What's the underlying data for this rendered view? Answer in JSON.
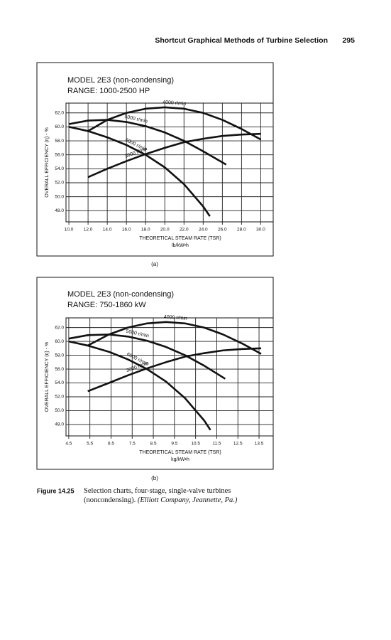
{
  "header": {
    "title": "Shortcut Graphical Methods of Turbine Selection",
    "page": "295"
  },
  "panels": [
    "(a)",
    "(b)"
  ],
  "caption": {
    "label": "Figure 14.25",
    "text": "Selection charts, four-stage, single-valve turbines (noncondensing).",
    "source": "(Elliott Company, Jeannette, Pa.)"
  },
  "chart_data": [
    {
      "type": "line",
      "title": "MODEL 2E3 (non-condensing)",
      "subtitle": "RANGE: 1000-2500 HP",
      "ylabel": "OVERALL EFFICIENCY (η) - %",
      "xlabel": "THEORETICAL STEAM RATE (TSR)",
      "xunit": "lb/kW•h",
      "xlim": [
        9.7,
        31.3
      ],
      "ylim": [
        46.4,
        63.4
      ],
      "grid": true,
      "xticks": [
        {
          "value": 10,
          "label": "10.0"
        },
        {
          "value": 12,
          "label": "12.0"
        },
        {
          "value": 14,
          "label": "14.0"
        },
        {
          "value": 16,
          "label": "16.0"
        },
        {
          "value": 18,
          "label": "18.0"
        },
        {
          "value": 20,
          "label": "20.0"
        },
        {
          "value": 22,
          "label": "22.0"
        },
        {
          "value": 24,
          "label": "24.0"
        },
        {
          "value": 26,
          "label": "26.0"
        },
        {
          "value": 28,
          "label": "28.0"
        },
        {
          "value": 30,
          "label": "30.0"
        }
      ],
      "yticks": [
        {
          "value": 48,
          "label": "48.0"
        },
        {
          "value": 50,
          "label": "50.0"
        },
        {
          "value": 52,
          "label": "52.0"
        },
        {
          "value": 54,
          "label": "54.0"
        },
        {
          "value": 56,
          "label": "56.0"
        },
        {
          "value": 58,
          "label": "58.0"
        },
        {
          "value": 60,
          "label": "60.0"
        },
        {
          "value": 62,
          "label": "62.0"
        }
      ],
      "series": [
        {
          "name": "4000 r/min",
          "color": "#111111",
          "x": [
            12,
            14,
            16,
            18,
            20,
            22,
            24,
            26,
            28,
            30
          ],
          "values": [
            59.4,
            61.0,
            62.0,
            62.6,
            62.8,
            62.6,
            62.0,
            61.0,
            59.7,
            58.2
          ]
        },
        {
          "name": "5000 r/min",
          "color": "#111111",
          "x": [
            10,
            12,
            14,
            16,
            18,
            20,
            22,
            24,
            26.4
          ],
          "values": [
            60.4,
            60.9,
            61.0,
            60.7,
            60.1,
            59.2,
            58.0,
            56.5,
            54.6
          ]
        },
        {
          "name": "6000 r/min",
          "color": "#111111",
          "x": [
            10,
            12,
            14,
            16,
            18,
            20,
            22,
            24,
            24.7
          ],
          "values": [
            60.0,
            59.4,
            58.5,
            57.4,
            56.0,
            54.2,
            51.8,
            48.6,
            47.2
          ]
        },
        {
          "name": "3000 r/min",
          "color": "#111111",
          "x": [
            12,
            14,
            16,
            18,
            20,
            22,
            24,
            26,
            28,
            30
          ],
          "values": [
            52.8,
            54.0,
            55.1,
            56.1,
            57.0,
            57.8,
            58.3,
            58.7,
            58.9,
            59.0
          ]
        }
      ]
    },
    {
      "type": "line",
      "title": "MODEL 2E3 (non-condensing)",
      "subtitle": "RANGE: 750-1860 kW",
      "ylabel": "OVERALL EFFICIENCY (η) - %",
      "xlabel": "THEORETICAL STEAM RATE (TSR)",
      "xunit": "kg/kW•h",
      "xlim": [
        4.37,
        14.17
      ],
      "ylim": [
        46.35,
        63.4
      ],
      "grid": true,
      "xticks": [
        4.5,
        5.5,
        6.5,
        7.5,
        8.5,
        9.5,
        10.5,
        11.5,
        12.5,
        13.5
      ],
      "yticks": [
        {
          "value": 48,
          "label": "48.0"
        },
        {
          "value": 50,
          "label": "50.0"
        },
        {
          "value": 52,
          "label": "52.0"
        },
        {
          "value": 54,
          "label": "54.0"
        },
        {
          "value": 56,
          "label": "56.0"
        },
        {
          "value": 58,
          "label": "58.0"
        },
        {
          "value": 60,
          "label": "60.0"
        },
        {
          "value": 62,
          "label": "62.0"
        }
      ],
      "series": [
        {
          "name": "4000 r/min",
          "color": "#111111",
          "x": [
            5.4,
            6.4,
            7.3,
            8.2,
            9.1,
            10.0,
            10.9,
            11.8,
            12.7,
            13.6
          ],
          "values": [
            59.4,
            61.0,
            62.0,
            62.6,
            62.8,
            62.6,
            62.0,
            61.0,
            59.7,
            58.2
          ]
        },
        {
          "name": "5000 r/min",
          "color": "#111111",
          "x": [
            4.5,
            5.4,
            6.4,
            7.3,
            8.2,
            9.1,
            10.0,
            10.9,
            11.9
          ],
          "values": [
            60.4,
            60.9,
            61.0,
            60.7,
            60.1,
            59.2,
            58.0,
            56.5,
            54.6
          ]
        },
        {
          "name": "6000 r/min",
          "color": "#111111",
          "x": [
            4.5,
            5.4,
            6.4,
            7.3,
            8.2,
            9.1,
            10.0,
            10.9,
            11.2
          ],
          "values": [
            60.0,
            59.4,
            58.5,
            57.4,
            56.0,
            54.2,
            51.8,
            48.6,
            47.2
          ]
        },
        {
          "name": "3000 r/min",
          "color": "#111111",
          "x": [
            5.4,
            6.4,
            7.3,
            8.2,
            9.1,
            10.0,
            10.9,
            11.8,
            12.7,
            13.6
          ],
          "values": [
            52.8,
            54.0,
            55.1,
            56.1,
            57.0,
            57.8,
            58.3,
            58.7,
            58.9,
            59.0
          ]
        }
      ]
    }
  ]
}
